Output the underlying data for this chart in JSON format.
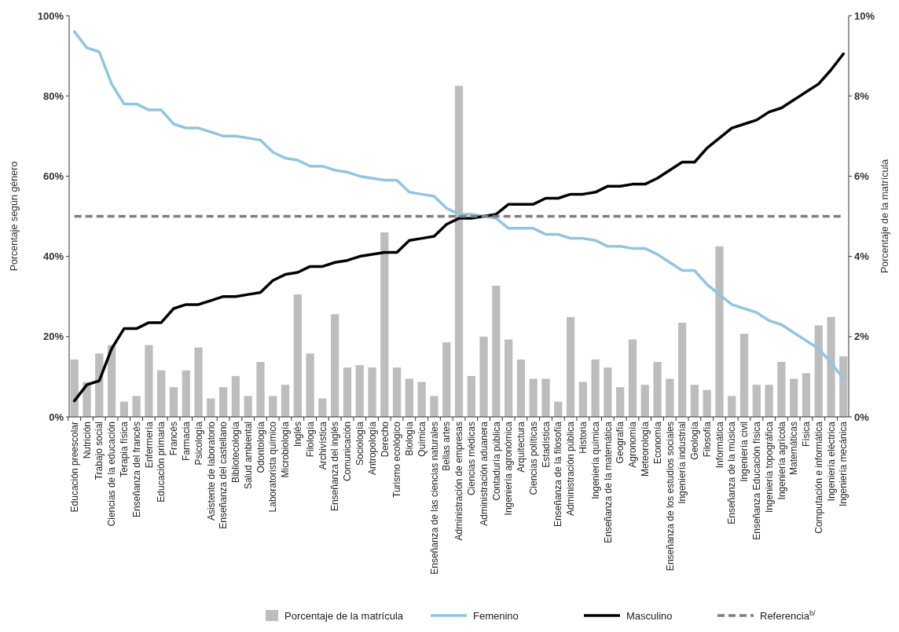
{
  "chart_data": {
    "type": "bar",
    "ylabel": "Porcentaje según género",
    "y2label": "Porcentaje de la matrícula",
    "categories": [
      "Educación preescolar",
      "Nutrición",
      "Trabajo social",
      "Ciencias de la educación",
      "Terapia física",
      "Enseñanza del francés",
      "Enfermería",
      "Educación primaria",
      "Francés",
      "Farmacia",
      "Psicología",
      "Asistente de laboratorio",
      "Enseñanza del castellano",
      "Bibliotecología",
      "Salud ambiental",
      "Odontología",
      "Laboratorista químico",
      "Microbiología",
      "Inglés",
      "Filología",
      "Archivística",
      "Enseñanza del inglés",
      "Comunicación",
      "Sociología",
      "Antropología",
      "Derecho",
      "Turismo ecológico",
      "Biología",
      "Química",
      "Enseñanza de las ciencias naturales",
      "Bellas artes",
      "Administración de empresas",
      "Ciencias médicas",
      "Administración aduanera",
      "Contaduría pública",
      "Ingeniería agronómica",
      "Arquitectura",
      "Ciencias políticas",
      "Estadística",
      "Enseñanza de la filosofía",
      "Administración pública",
      "Historia",
      "Ingeniería química",
      "Enseñanza de la matemática",
      "Geografía",
      "Agronomía",
      "Meteorología",
      "Economía",
      "Enseñanza de los estudios sociales",
      "Ingeniería industrial",
      "Geología",
      "Filosofía",
      "Informática",
      "Enseñanza de la música",
      "Ingeniería civil",
      "Enseñanza Educación física",
      "Ingeniería topográfica",
      "Ingeniería agrícola",
      "Matemáticas",
      "Física",
      "Computación e informática",
      "Ingeniería eléctrica",
      "Ingeniería mecánica"
    ],
    "series": [
      {
        "name": "Porcentaje de la matrícula",
        "axis": "y2",
        "color": "#bdbdbd",
        "values": [
          1.43,
          0.87,
          1.58,
          1.79,
          0.38,
          0.52,
          1.79,
          1.16,
          0.74,
          1.16,
          1.73,
          0.46,
          0.74,
          1.02,
          0.52,
          1.37,
          0.52,
          0.8,
          3.05,
          1.58,
          0.46,
          2.56,
          1.23,
          1.29,
          1.23,
          4.6,
          1.23,
          0.95,
          0.87,
          0.52,
          1.86,
          8.25,
          1.02,
          2.0,
          3.27,
          1.93,
          1.43,
          0.95,
          0.95,
          0.38,
          2.49,
          0.87,
          1.43,
          1.23,
          0.74,
          1.93,
          0.8,
          1.37,
          0.95,
          2.35,
          0.8,
          0.67,
          4.25,
          0.52,
          2.07,
          0.8,
          0.8,
          1.37,
          0.95,
          1.09,
          2.28,
          2.49,
          1.51
        ]
      },
      {
        "name": "Femenino",
        "type": "line",
        "color": "#92c5de",
        "values": [
          96,
          92,
          91,
          83,
          78,
          78,
          76.5,
          76.5,
          73,
          72,
          72,
          71,
          70,
          70,
          69.5,
          69,
          66,
          64.5,
          64,
          62.5,
          62.5,
          61.5,
          61,
          60,
          59.5,
          59,
          59,
          56,
          55.5,
          55,
          52,
          50.5,
          50.5,
          50,
          49.5,
          47,
          47,
          47,
          45.5,
          45.5,
          44.5,
          44.5,
          44,
          42.5,
          42.5,
          42,
          42,
          40.5,
          38.5,
          36.5,
          36.5,
          33,
          30.5,
          28,
          27,
          26,
          24,
          23,
          21,
          19,
          17,
          13.5,
          9.5
        ]
      },
      {
        "name": "Masculino",
        "type": "line",
        "color": "#000000",
        "values": [
          4,
          8,
          9,
          17,
          22,
          22,
          23.5,
          23.5,
          27,
          28,
          28,
          29,
          30,
          30,
          30.5,
          31,
          34,
          35.5,
          36,
          37.5,
          37.5,
          38.5,
          39,
          40,
          40.5,
          41,
          41,
          44,
          44.5,
          45,
          48,
          49.5,
          49.5,
          50,
          50.5,
          53,
          53,
          53,
          54.5,
          54.5,
          55.5,
          55.5,
          56,
          57.5,
          57.5,
          58,
          58,
          59.5,
          61.5,
          63.5,
          63.5,
          67,
          69.5,
          72,
          73,
          74,
          76,
          77,
          79,
          81,
          83,
          86.5,
          90.5
        ]
      }
    ],
    "ref_lines": [
      {
        "axis": "y",
        "value": 50,
        "label": "Referencia$^{b/}$",
        "color": "#7f7f7f",
        "line_style": "dashed"
      }
    ],
    "ylim": [
      0,
      100
    ],
    "yticks": [
      {
        "value": 0,
        "label": "0%"
      },
      {
        "value": 20,
        "label": "20%"
      },
      {
        "value": 40,
        "label": "40%"
      },
      {
        "value": 60,
        "label": "60%"
      },
      {
        "value": 80,
        "label": "80%"
      },
      {
        "value": 100,
        "label": "100%"
      }
    ],
    "y2lim": [
      0,
      10
    ],
    "y2ticks": [
      {
        "value": 0,
        "label": "0%"
      },
      {
        "value": 2,
        "label": "2%"
      },
      {
        "value": 4,
        "label": "4%"
      },
      {
        "value": 6,
        "label": "6%"
      },
      {
        "value": 8,
        "label": "8%"
      },
      {
        "value": 10,
        "label": "10%"
      }
    ],
    "grid": false,
    "legend": "bottom"
  }
}
